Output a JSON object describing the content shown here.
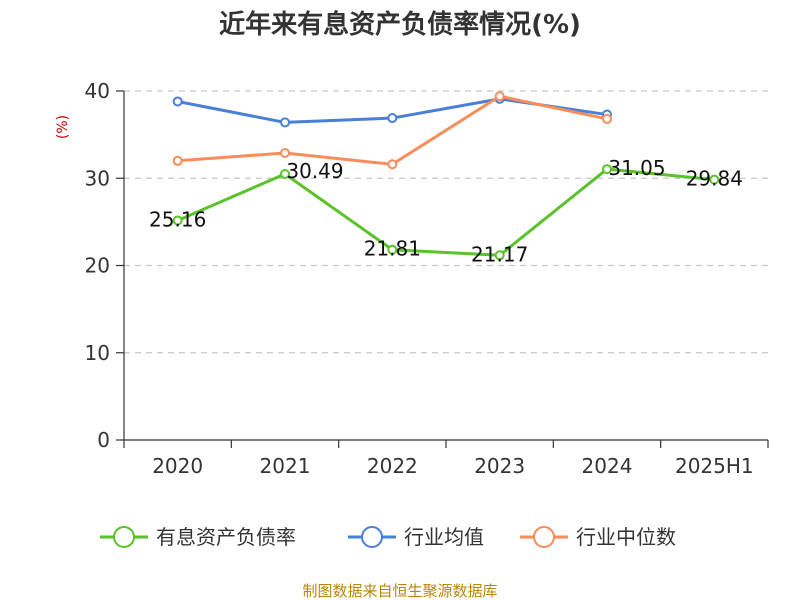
{
  "chart_data": {
    "type": "line",
    "title": "近年来有息资产负债率情况(%)",
    "ylabel": "(%)",
    "xlabel": "",
    "categories": [
      "2020",
      "2021",
      "2022",
      "2023",
      "2024",
      "2025H1"
    ],
    "ylim": [
      0,
      40
    ],
    "yticks": [
      0,
      10,
      20,
      30,
      40
    ],
    "grid": true,
    "legend_position": "bottom",
    "series": [
      {
        "name": "有息资产负债率",
        "color": "#5ac22a",
        "values": [
          25.16,
          30.49,
          21.81,
          21.17,
          31.05,
          29.84
        ],
        "labels": [
          "25.16",
          "30.49",
          "21.81",
          "21.17",
          "31.05",
          "29.84"
        ]
      },
      {
        "name": "行业均值",
        "color": "#4a7fd8",
        "values": [
          38.8,
          36.4,
          36.9,
          39.1,
          37.3,
          null
        ]
      },
      {
        "name": "行业中位数",
        "color": "#f88d5a",
        "values": [
          32.0,
          32.9,
          31.6,
          39.4,
          36.8,
          null
        ]
      }
    ]
  },
  "source": "制图数据来自恒生聚源数据库"
}
